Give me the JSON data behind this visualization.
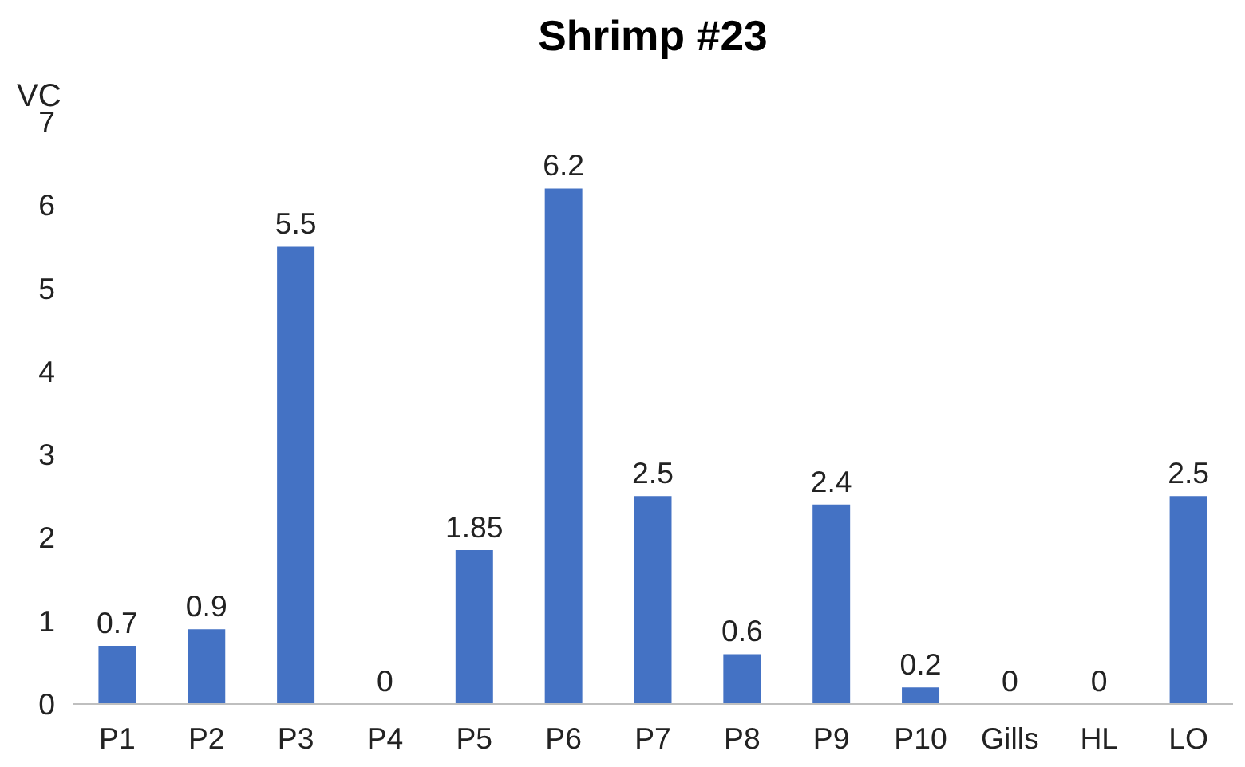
{
  "chart_data": {
    "type": "bar",
    "title": "Shrimp #23",
    "ylabel": "VC",
    "categories": [
      "P1",
      "P2",
      "P3",
      "P4",
      "P5",
      "P6",
      "P7",
      "P8",
      "P9",
      "P10",
      "Gills",
      "HL",
      "LO"
    ],
    "values": [
      0.7,
      0.9,
      5.5,
      0,
      1.85,
      6.2,
      2.5,
      0.6,
      2.4,
      0.2,
      0,
      0,
      2.5
    ],
    "color": "#4472c4",
    "ylim": [
      0,
      7
    ],
    "yticks": [
      0,
      1,
      2,
      3,
      4,
      5,
      6,
      7
    ],
    "grid": false,
    "data_labels": true
  }
}
